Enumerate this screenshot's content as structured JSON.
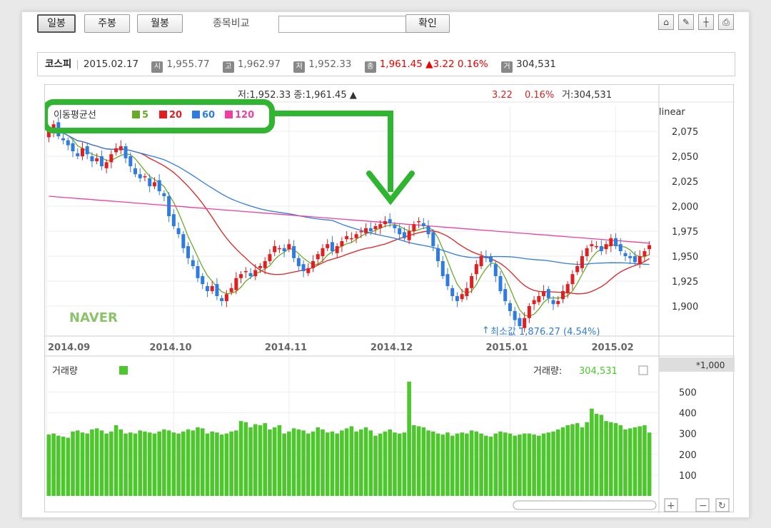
{
  "toolbar": {
    "period_buttons": [
      "일봉",
      "주봉",
      "월봉"
    ],
    "compare_label": "종목비교",
    "compare_input_value": "",
    "confirm_label": "확인"
  },
  "info": {
    "name": "코스피",
    "date": "2015.02.17",
    "open_tag": "시",
    "open": "1,955.77",
    "high_tag": "고",
    "high": "1,962.97",
    "low_tag": "저",
    "low": "1,952.33",
    "close_tag": "종",
    "close": "1,961.45",
    "change_arrow": "▲",
    "change": "3.22",
    "change_pct": "0.16%",
    "volume_tag": "거",
    "volume": "304,531"
  },
  "chart_header": {
    "left_partial": "저:1,952.33 종:1,961.45 ▲",
    "change": "3.22",
    "change_pct": "0.16%",
    "volume_text": "거:304,531"
  },
  "legend": {
    "title": "이동평균선",
    "items": [
      {
        "label": "5",
        "color": "#6aaa2a"
      },
      {
        "label": "20",
        "color": "#e02020"
      },
      {
        "label": "60",
        "color": "#2f7be0"
      },
      {
        "label": "120",
        "color": "#ee3fa0"
      }
    ]
  },
  "price_panel": {
    "scale_label": "linear",
    "min_label": "최소값 1,876.27 (4.54%)",
    "watermark": "NAVER"
  },
  "volume_panel": {
    "title": "거래량",
    "scale_unit": "*1,000",
    "value_label": "거래량:",
    "value": "304,531"
  },
  "colors": {
    "up": "#e02020",
    "down": "#2f7be0",
    "volume": "#4cc72c",
    "ma5": "#6aaa2a",
    "ma20": "#e02020",
    "ma60": "#2f7be0",
    "ma120": "#ee3fa0",
    "annotation": "#2fb52f"
  },
  "chart_data": {
    "type": "candlestick",
    "x_ticks": [
      "2014.09",
      "2014.10",
      "2014.11",
      "2014.12",
      "2015.01",
      "2015.02"
    ],
    "price_axis": {
      "ticks": [
        1900,
        1925,
        1950,
        1975,
        2000,
        2025,
        2050,
        2075
      ],
      "tick_labels": [
        "1,900",
        "1,925",
        "1,950",
        "1,975",
        "2,000",
        "2,025",
        "2,050",
        "2,075"
      ],
      "ylim": [
        1870,
        2100
      ],
      "scale": "linear"
    },
    "volume_axis": {
      "ticks": [
        100,
        200,
        300,
        400,
        500
      ],
      "tick_labels": [
        "100",
        "200",
        "300",
        "400",
        "500"
      ],
      "ylim": [
        0,
        570
      ],
      "unit": "*1,000"
    },
    "price_close": [
      2075,
      2082,
      2070,
      2066,
      2061,
      2055,
      2050,
      2058,
      2052,
      2045,
      2048,
      2040,
      2044,
      2052,
      2058,
      2060,
      2048,
      2040,
      2032,
      2028,
      2030,
      2020,
      2024,
      2015,
      2010,
      1990,
      1980,
      1972,
      1958,
      1948,
      1940,
      1928,
      1922,
      1915,
      1920,
      1910,
      1905,
      1912,
      1918,
      1928,
      1932,
      1935,
      1930,
      1936,
      1940,
      1945,
      1952,
      1960,
      1958,
      1955,
      1962,
      1948,
      1940,
      1935,
      1938,
      1945,
      1952,
      1958,
      1962,
      1955,
      1960,
      1965,
      1970,
      1968,
      1972,
      1975,
      1978,
      1975,
      1980,
      1982,
      1985,
      1983,
      1978,
      1972,
      1968,
      1975,
      1982,
      1985,
      1980,
      1972,
      1960,
      1945,
      1930,
      1920,
      1910,
      1905,
      1912,
      1918,
      1930,
      1942,
      1950,
      1948,
      1944,
      1930,
      1915,
      1905,
      1895,
      1886,
      1880,
      1888,
      1900,
      1906,
      1910,
      1915,
      1908,
      1902,
      1905,
      1915,
      1922,
      1932,
      1940,
      1950,
      1958,
      1962,
      1960,
      1955,
      1962,
      1968,
      1960,
      1955,
      1950,
      1948,
      1944,
      1950,
      1955,
      1961
    ],
    "volume": [
      295,
      300,
      290,
      285,
      280,
      310,
      315,
      305,
      300,
      320,
      325,
      315,
      300,
      310,
      340,
      320,
      300,
      305,
      300,
      315,
      310,
      305,
      300,
      310,
      320,
      315,
      305,
      300,
      310,
      320,
      315,
      330,
      325,
      300,
      310,
      305,
      295,
      300,
      310,
      315,
      360,
      355,
      330,
      345,
      340,
      350,
      320,
      330,
      340,
      300,
      310,
      325,
      320,
      315,
      300,
      310,
      330,
      320,
      305,
      310,
      300,
      315,
      325,
      335,
      310,
      320,
      330,
      315,
      290,
      300,
      310,
      320,
      305,
      300,
      305,
      550,
      340,
      335,
      330,
      315,
      310,
      300,
      295,
      305,
      290,
      300,
      305,
      300,
      315,
      310,
      300,
      290,
      285,
      300,
      310,
      305,
      300,
      290,
      295,
      300,
      300,
      295,
      290,
      300,
      305,
      310,
      320,
      330,
      340,
      345,
      350,
      330,
      355,
      420,
      395,
      390,
      360,
      355,
      350,
      340,
      320,
      325,
      330,
      335,
      340,
      305
    ]
  }
}
